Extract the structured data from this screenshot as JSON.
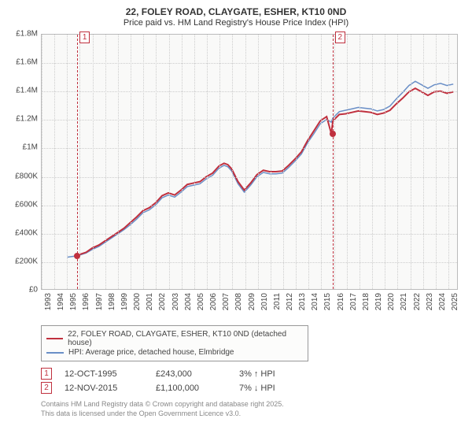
{
  "title_line1": "22, FOLEY ROAD, CLAYGATE, ESHER, KT10 0ND",
  "title_line2": "Price paid vs. HM Land Registry's House Price Index (HPI)",
  "chart": {
    "type": "line",
    "background_color": "#f9f9f8",
    "grid_color": "#cccccc",
    "border_color": "#bbbbbb",
    "x_years": [
      1993,
      1994,
      1995,
      1996,
      1997,
      1998,
      1999,
      2000,
      2001,
      2002,
      2003,
      2004,
      2005,
      2006,
      2007,
      2008,
      2009,
      2010,
      2011,
      2012,
      2013,
      2014,
      2015,
      2016,
      2017,
      2018,
      2019,
      2020,
      2021,
      2022,
      2023,
      2024,
      2025
    ],
    "xlim": [
      1993,
      2025.8
    ],
    "ylim": [
      0,
      1800000
    ],
    "ytick_step": 200000,
    "ytick_labels": [
      "£0",
      "£200K",
      "£400K",
      "£600K",
      "£800K",
      "£1M",
      "£1.2M",
      "£1.4M",
      "£1.6M",
      "£1.8M"
    ],
    "series": [
      {
        "name": "price_paid",
        "label": "22, FOLEY ROAD, CLAYGATE, ESHER, KT10 0ND (detached house)",
        "color": "#c0303e",
        "line_width": 2,
        "data": [
          [
            1995.78,
            243000
          ],
          [
            1996,
            245000
          ],
          [
            1996.5,
            260000
          ],
          [
            1997,
            290000
          ],
          [
            1997.5,
            310000
          ],
          [
            1998,
            340000
          ],
          [
            1998.5,
            370000
          ],
          [
            1999,
            400000
          ],
          [
            1999.5,
            430000
          ],
          [
            2000,
            470000
          ],
          [
            2000.5,
            510000
          ],
          [
            2001,
            555000
          ],
          [
            2001.5,
            575000
          ],
          [
            2002,
            610000
          ],
          [
            2002.5,
            660000
          ],
          [
            2003,
            680000
          ],
          [
            2003.5,
            665000
          ],
          [
            2004,
            700000
          ],
          [
            2004.5,
            740000
          ],
          [
            2005,
            750000
          ],
          [
            2005.5,
            760000
          ],
          [
            2006,
            795000
          ],
          [
            2006.5,
            820000
          ],
          [
            2007,
            870000
          ],
          [
            2007.4,
            890000
          ],
          [
            2007.7,
            880000
          ],
          [
            2008,
            850000
          ],
          [
            2008.5,
            760000
          ],
          [
            2009,
            700000
          ],
          [
            2009.5,
            750000
          ],
          [
            2010,
            810000
          ],
          [
            2010.5,
            840000
          ],
          [
            2011,
            830000
          ],
          [
            2011.5,
            830000
          ],
          [
            2012,
            835000
          ],
          [
            2012.5,
            875000
          ],
          [
            2013,
            920000
          ],
          [
            2013.5,
            970000
          ],
          [
            2014,
            1050000
          ],
          [
            2014.5,
            1120000
          ],
          [
            2015,
            1190000
          ],
          [
            2015.5,
            1220000
          ],
          [
            2015.87,
            1100000
          ],
          [
            2016,
            1190000
          ],
          [
            2016.5,
            1235000
          ],
          [
            2017,
            1240000
          ],
          [
            2017.5,
            1250000
          ],
          [
            2018,
            1260000
          ],
          [
            2018.5,
            1255000
          ],
          [
            2019,
            1250000
          ],
          [
            2019.5,
            1235000
          ],
          [
            2020,
            1245000
          ],
          [
            2020.5,
            1265000
          ],
          [
            2021,
            1310000
          ],
          [
            2021.5,
            1350000
          ],
          [
            2022,
            1395000
          ],
          [
            2022.5,
            1420000
          ],
          [
            2023,
            1395000
          ],
          [
            2023.5,
            1370000
          ],
          [
            2024,
            1395000
          ],
          [
            2024.5,
            1400000
          ],
          [
            2025,
            1385000
          ],
          [
            2025.5,
            1395000
          ]
        ]
      },
      {
        "name": "hpi",
        "label": "HPI: Average price, detached house, Elmbridge",
        "color": "#6a8fc7",
        "line_width": 1.5,
        "data": [
          [
            1995,
            225000
          ],
          [
            1995.78,
            235000
          ],
          [
            1996,
            240000
          ],
          [
            1996.5,
            255000
          ],
          [
            1997,
            280000
          ],
          [
            1997.5,
            300000
          ],
          [
            1998,
            330000
          ],
          [
            1998.5,
            360000
          ],
          [
            1999,
            390000
          ],
          [
            1999.5,
            420000
          ],
          [
            2000,
            455000
          ],
          [
            2000.5,
            495000
          ],
          [
            2001,
            540000
          ],
          [
            2001.5,
            560000
          ],
          [
            2002,
            595000
          ],
          [
            2002.5,
            645000
          ],
          [
            2003,
            665000
          ],
          [
            2003.5,
            650000
          ],
          [
            2004,
            685000
          ],
          [
            2004.5,
            725000
          ],
          [
            2005,
            735000
          ],
          [
            2005.5,
            745000
          ],
          [
            2006,
            780000
          ],
          [
            2006.5,
            805000
          ],
          [
            2007,
            855000
          ],
          [
            2007.4,
            875000
          ],
          [
            2007.7,
            865000
          ],
          [
            2008,
            835000
          ],
          [
            2008.5,
            745000
          ],
          [
            2009,
            685000
          ],
          [
            2009.5,
            735000
          ],
          [
            2010,
            795000
          ],
          [
            2010.5,
            825000
          ],
          [
            2011,
            815000
          ],
          [
            2011.5,
            815000
          ],
          [
            2012,
            820000
          ],
          [
            2012.5,
            860000
          ],
          [
            2013,
            905000
          ],
          [
            2013.5,
            955000
          ],
          [
            2014,
            1035000
          ],
          [
            2014.5,
            1100000
          ],
          [
            2015,
            1170000
          ],
          [
            2015.5,
            1200000
          ],
          [
            2015.87,
            1180000
          ],
          [
            2016,
            1210000
          ],
          [
            2016.5,
            1255000
          ],
          [
            2017,
            1265000
          ],
          [
            2017.5,
            1275000
          ],
          [
            2018,
            1285000
          ],
          [
            2018.5,
            1280000
          ],
          [
            2019,
            1275000
          ],
          [
            2019.5,
            1260000
          ],
          [
            2020,
            1270000
          ],
          [
            2020.5,
            1295000
          ],
          [
            2021,
            1345000
          ],
          [
            2021.5,
            1390000
          ],
          [
            2022,
            1440000
          ],
          [
            2022.5,
            1470000
          ],
          [
            2023,
            1445000
          ],
          [
            2023.5,
            1420000
          ],
          [
            2024,
            1445000
          ],
          [
            2024.5,
            1455000
          ],
          [
            2025,
            1440000
          ],
          [
            2025.5,
            1450000
          ]
        ]
      }
    ],
    "markers": [
      {
        "index": "1",
        "x": 1995.78,
        "y": 243000
      },
      {
        "index": "2",
        "x": 2015.87,
        "y": 1100000
      }
    ]
  },
  "legend_items": [
    {
      "color": "#c0303e",
      "label": "22, FOLEY ROAD, CLAYGATE, ESHER, KT10 0ND (detached house)"
    },
    {
      "color": "#6a8fc7",
      "label": "HPI: Average price, detached house, Elmbridge"
    }
  ],
  "transactions": [
    {
      "index": "1",
      "date": "12-OCT-1995",
      "price": "£243,000",
      "pct": "3%",
      "direction": "up",
      "ref": "HPI"
    },
    {
      "index": "2",
      "date": "12-NOV-2015",
      "price": "£1,100,000",
      "pct": "7%",
      "direction": "down",
      "ref": "HPI"
    }
  ],
  "footer_line1": "Contains HM Land Registry data © Crown copyright and database right 2025.",
  "footer_line2": "This data is licensed under the Open Government Licence v3.0."
}
